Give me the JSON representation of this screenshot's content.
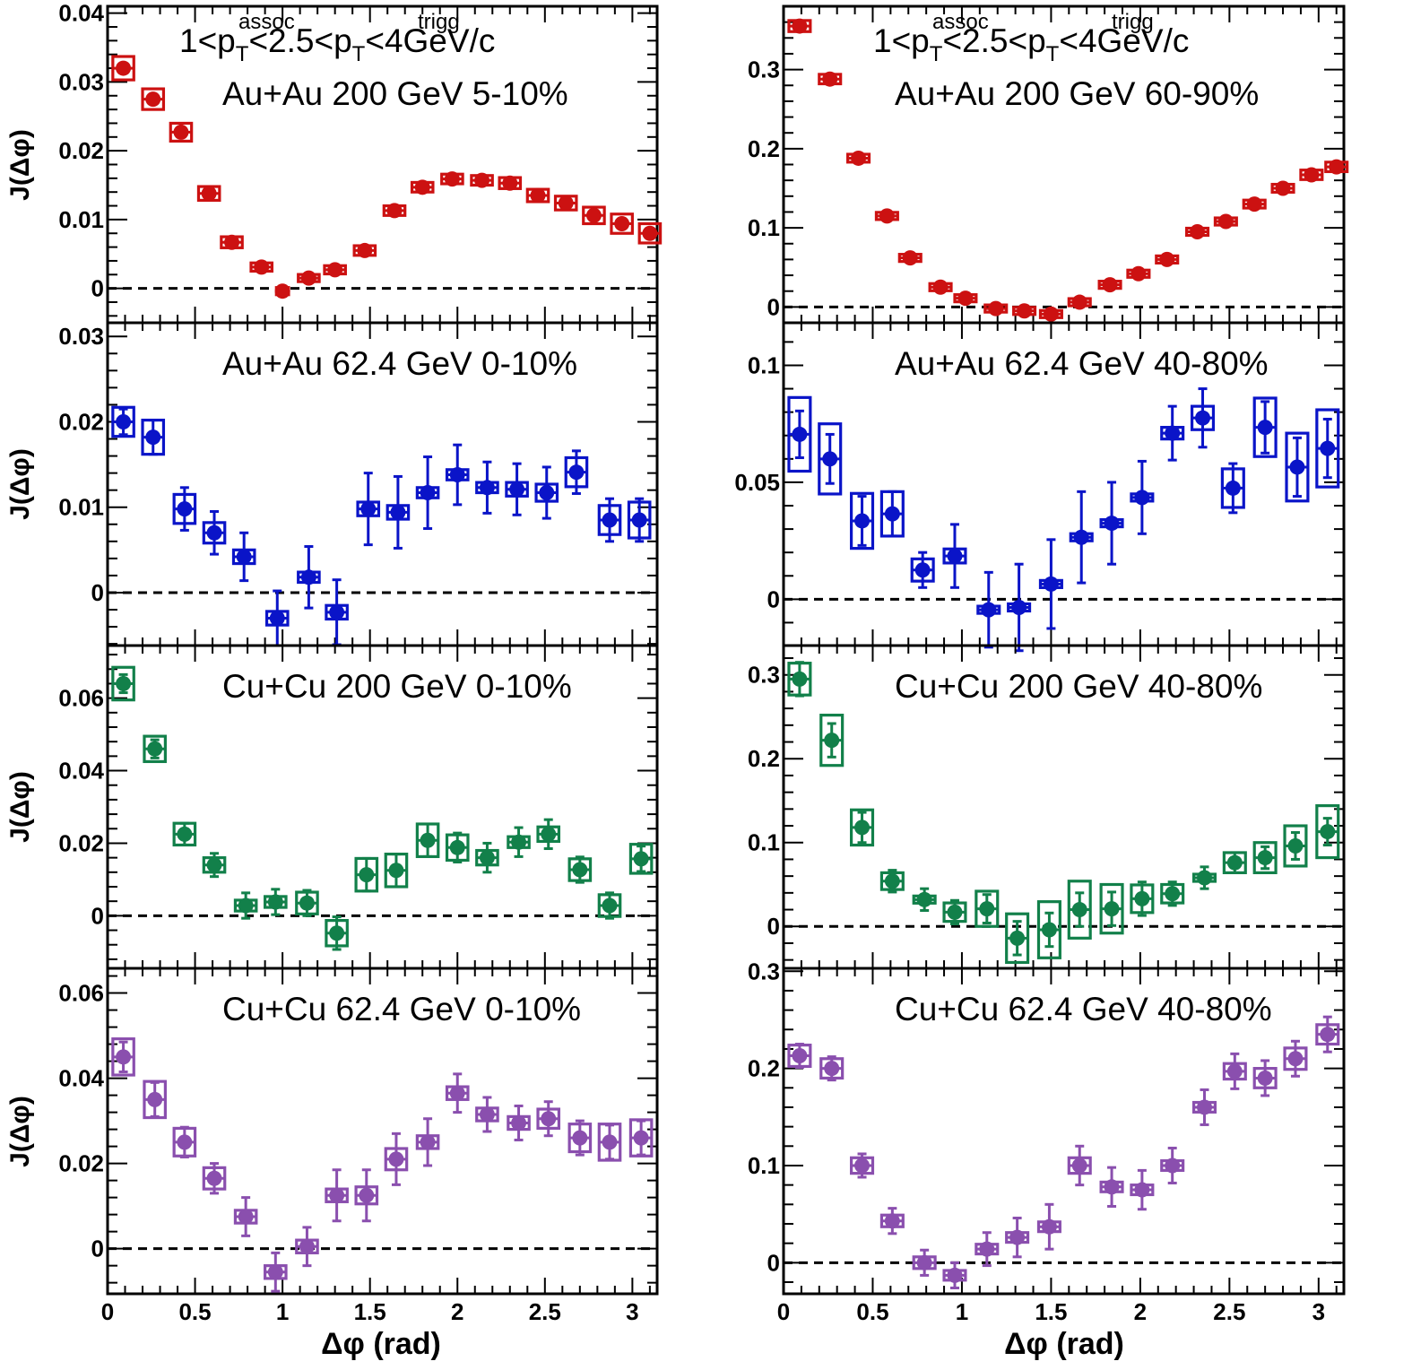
{
  "colors": {
    "au200": "#cc1111",
    "au62": "#0a14c8",
    "cu200": "#12804a",
    "cu62": "#8a4fae",
    "axis": "#000000"
  },
  "header": {
    "p1": "1<p",
    "sup1": "assoc",
    "sub1": "T",
    "p2": "<2.5<p",
    "sup2": "trigg",
    "sub2": "T",
    "p3": "<4GeV/c"
  },
  "ylabel": "J(Δφ)",
  "xlabel": "Δφ  (rad)",
  "chart_data": [
    {
      "type": "scatter",
      "label": "Au+Au 200 GeV 5-10%",
      "color_key": "au200",
      "x": [
        0.09,
        0.26,
        0.42,
        0.58,
        0.71,
        0.88,
        1.0,
        1.15,
        1.3,
        1.47,
        1.64,
        1.8,
        1.97,
        2.14,
        2.3,
        2.46,
        2.62,
        2.78,
        2.94,
        3.1
      ],
      "values": [
        0.032,
        0.0275,
        0.0227,
        0.0138,
        0.0067,
        0.0031,
        -0.0004,
        0.0015,
        0.0027,
        0.0055,
        0.0113,
        0.0147,
        0.0159,
        0.0157,
        0.0153,
        0.0135,
        0.0124,
        0.0106,
        0.0094,
        0.008
      ],
      "yerr": [
        0,
        0,
        0,
        0,
        0,
        0,
        0,
        0,
        0,
        0,
        0,
        0,
        0,
        0,
        0,
        0,
        0,
        0,
        0,
        0
      ],
      "box_h": [
        0.0034,
        0.003,
        0.0026,
        0.002,
        0.0016,
        0.0012,
        0.001,
        0.001,
        0.0012,
        0.0014,
        0.0014,
        0.0014,
        0.0014,
        0.0014,
        0.0016,
        0.0018,
        0.002,
        0.0024,
        0.0028,
        0.0028
      ],
      "box_w": [
        0.12,
        0.12,
        0.12,
        0.12,
        0.12,
        0.12,
        0.07,
        0.12,
        0.12,
        0.12,
        0.12,
        0.12,
        0.12,
        0.12,
        0.12,
        0.12,
        0.12,
        0.12,
        0.12,
        0.12
      ],
      "ylim": [
        -0.005,
        0.041
      ],
      "yticks": [
        0,
        0.01,
        0.02,
        0.03,
        0.04
      ],
      "ytick_labels": [
        "0",
        "0.01",
        "0.02",
        "0.03",
        "0.04"
      ]
    },
    {
      "type": "scatter",
      "label": "Au+Au 200 GeV 60-90%",
      "color_key": "au200",
      "x": [
        0.09,
        0.26,
        0.42,
        0.58,
        0.71,
        0.88,
        1.02,
        1.19,
        1.35,
        1.5,
        1.66,
        1.83,
        1.99,
        2.15,
        2.32,
        2.48,
        2.64,
        2.8,
        2.96,
        3.1
      ],
      "values": [
        0.355,
        0.288,
        0.188,
        0.115,
        0.062,
        0.025,
        0.011,
        -0.002,
        -0.005,
        -0.009,
        0.006,
        0.028,
        0.042,
        0.06,
        0.095,
        0.108,
        0.13,
        0.15,
        0.167,
        0.177
      ],
      "yerr": [
        0,
        0,
        0,
        0,
        0,
        0,
        0,
        0,
        0,
        0,
        0,
        0,
        0,
        0,
        0,
        0,
        0,
        0,
        0,
        0
      ],
      "box_h": [
        0.014,
        0.012,
        0.01,
        0.008,
        0.008,
        0.006,
        0.006,
        0.006,
        0.006,
        0.006,
        0.006,
        0.006,
        0.006,
        0.006,
        0.008,
        0.008,
        0.01,
        0.01,
        0.012,
        0.012
      ],
      "box_w": [
        0.12,
        0.12,
        0.12,
        0.12,
        0.12,
        0.12,
        0.12,
        0.12,
        0.12,
        0.12,
        0.12,
        0.12,
        0.12,
        0.12,
        0.12,
        0.12,
        0.12,
        0.12,
        0.12,
        0.12
      ],
      "ylim": [
        -0.02,
        0.38
      ],
      "yticks": [
        0,
        0.1,
        0.2,
        0.3
      ],
      "ytick_labels": [
        "0",
        "0.1",
        "0.2",
        "0.3"
      ]
    },
    {
      "type": "scatter",
      "label": "Au+Au 62.4 GeV 0-10%",
      "color_key": "au62",
      "x": [
        0.09,
        0.26,
        0.44,
        0.61,
        0.78,
        0.97,
        1.15,
        1.31,
        1.49,
        1.66,
        1.83,
        2.0,
        2.17,
        2.34,
        2.51,
        2.68,
        2.87,
        3.04
      ],
      "values": [
        0.02,
        0.0182,
        0.0098,
        0.007,
        0.0042,
        -0.003,
        0.0018,
        -0.0023,
        0.0098,
        0.0094,
        0.0117,
        0.0138,
        0.0123,
        0.0121,
        0.0117,
        0.0141,
        0.0085,
        0.0085
      ],
      "yerr": [
        0.0015,
        0.002,
        0.0025,
        0.0025,
        0.0028,
        0.0032,
        0.0036,
        0.0038,
        0.0042,
        0.0042,
        0.0042,
        0.0035,
        0.003,
        0.003,
        0.003,
        0.0025,
        0.0025,
        0.0025
      ],
      "box_h": [
        0.0034,
        0.004,
        0.0034,
        0.0024,
        0.0016,
        0.0016,
        0.0012,
        0.0016,
        0.0016,
        0.0016,
        0.0012,
        0.0012,
        0.0012,
        0.0016,
        0.002,
        0.0034,
        0.0034,
        0.0042
      ],
      "box_w": [
        0.12,
        0.12,
        0.12,
        0.12,
        0.12,
        0.12,
        0.12,
        0.12,
        0.12,
        0.12,
        0.12,
        0.12,
        0.12,
        0.12,
        0.12,
        0.12,
        0.12,
        0.12
      ],
      "ylim": [
        -0.0062,
        0.0316
      ],
      "yticks": [
        0,
        0.01,
        0.02,
        0.03
      ],
      "ytick_labels": [
        "0",
        "0.01",
        "0.02",
        "0.03"
      ]
    },
    {
      "type": "scatter",
      "label": "Au+Au 62.4 GeV 40-80%",
      "color_key": "au62",
      "x": [
        0.09,
        0.26,
        0.44,
        0.61,
        0.78,
        0.96,
        1.15,
        1.32,
        1.5,
        1.67,
        1.84,
        2.01,
        2.18,
        2.35,
        2.52,
        2.7,
        2.88,
        3.05
      ],
      "values": [
        0.0705,
        0.06,
        0.0335,
        0.0365,
        0.0125,
        0.0185,
        -0.0045,
        -0.0035,
        0.0065,
        0.0265,
        0.0325,
        0.0435,
        0.071,
        0.0775,
        0.0475,
        0.0735,
        0.0565,
        0.0645
      ],
      "yerr": [
        0.01,
        0.0105,
        0.0105,
        0.0095,
        0.0075,
        0.0135,
        0.016,
        0.0185,
        0.019,
        0.0195,
        0.0175,
        0.0155,
        0.0115,
        0.0125,
        0.0105,
        0.011,
        0.0125,
        0.0125
      ],
      "box_h": [
        0.0315,
        0.03,
        0.0235,
        0.019,
        0.0095,
        0.006,
        0.003,
        0.003,
        0.003,
        0.003,
        0.003,
        0.003,
        0.005,
        0.01,
        0.0165,
        0.025,
        0.029,
        0.033
      ],
      "box_w": [
        0.12,
        0.12,
        0.12,
        0.12,
        0.12,
        0.12,
        0.12,
        0.12,
        0.12,
        0.12,
        0.12,
        0.12,
        0.12,
        0.12,
        0.12,
        0.12,
        0.12,
        0.12
      ],
      "ylim": [
        -0.0198,
        0.1182
      ],
      "yticks": [
        0,
        0.05,
        0.1
      ],
      "ytick_labels": [
        "0",
        "0.05",
        "0.1"
      ]
    },
    {
      "type": "scatter",
      "label": "Cu+Cu 200 GeV 0-10%",
      "color_key": "cu200",
      "x": [
        0.09,
        0.27,
        0.44,
        0.61,
        0.79,
        0.96,
        1.14,
        1.31,
        1.48,
        1.65,
        1.83,
        2.0,
        2.17,
        2.35,
        2.52,
        2.7,
        2.87,
        3.05
      ],
      "values": [
        0.064,
        0.046,
        0.0225,
        0.014,
        0.0028,
        0.0038,
        0.0035,
        -0.0048,
        0.0113,
        0.0125,
        0.0208,
        0.0188,
        0.016,
        0.0203,
        0.0225,
        0.0127,
        0.0028,
        0.0157
      ],
      "yerr": [
        0.0025,
        0.0025,
        0.003,
        0.0032,
        0.0035,
        0.0035,
        0.0035,
        0.0045,
        0.0045,
        0.0045,
        0.0045,
        0.004,
        0.004,
        0.004,
        0.004,
        0.0035,
        0.0035,
        0.0035
      ],
      "box_h": [
        0.009,
        0.007,
        0.006,
        0.004,
        0.003,
        0.003,
        0.006,
        0.007,
        0.009,
        0.009,
        0.009,
        0.007,
        0.004,
        0.003,
        0.004,
        0.006,
        0.006,
        0.008
      ],
      "box_w": [
        0.12,
        0.12,
        0.12,
        0.12,
        0.12,
        0.12,
        0.12,
        0.12,
        0.12,
        0.12,
        0.12,
        0.12,
        0.12,
        0.12,
        0.12,
        0.12,
        0.12,
        0.12
      ],
      "ylim": [
        -0.0145,
        0.0745
      ],
      "yticks": [
        0,
        0.02,
        0.04,
        0.06
      ],
      "ytick_labels": [
        "0",
        "0.02",
        "0.04",
        "0.06"
      ]
    },
    {
      "type": "scatter",
      "label": "Cu+Cu 200 GeV 40-80%",
      "color_key": "cu200",
      "x": [
        0.09,
        0.27,
        0.44,
        0.61,
        0.79,
        0.96,
        1.14,
        1.31,
        1.49,
        1.66,
        1.84,
        2.01,
        2.18,
        2.36,
        2.53,
        2.7,
        2.87,
        3.05
      ],
      "values": [
        0.295,
        0.222,
        0.118,
        0.054,
        0.032,
        0.017,
        0.021,
        -0.014,
        -0.004,
        0.02,
        0.021,
        0.033,
        0.039,
        0.058,
        0.076,
        0.082,
        0.096,
        0.113
      ],
      "yerr": [
        0.02,
        0.02,
        0.018,
        0.013,
        0.013,
        0.014,
        0.017,
        0.02,
        0.02,
        0.02,
        0.02,
        0.02,
        0.014,
        0.013,
        0.012,
        0.013,
        0.016,
        0.016
      ],
      "box_h": [
        0.038,
        0.06,
        0.042,
        0.02,
        0.008,
        0.022,
        0.042,
        0.058,
        0.067,
        0.068,
        0.058,
        0.033,
        0.022,
        0.008,
        0.024,
        0.036,
        0.048,
        0.062
      ],
      "box_w": [
        0.12,
        0.12,
        0.12,
        0.12,
        0.12,
        0.12,
        0.12,
        0.12,
        0.12,
        0.12,
        0.12,
        0.12,
        0.12,
        0.12,
        0.12,
        0.12,
        0.12,
        0.12
      ],
      "ylim": [
        -0.05,
        0.335
      ],
      "yticks": [
        0,
        0.1,
        0.2,
        0.3
      ],
      "ytick_labels": [
        "0",
        "0.1",
        "0.2",
        "0.3"
      ]
    },
    {
      "type": "scatter",
      "label": "Cu+Cu 62.4 GeV 0-10%",
      "color_key": "cu62",
      "x": [
        0.09,
        0.27,
        0.44,
        0.61,
        0.79,
        0.96,
        1.14,
        1.31,
        1.48,
        1.65,
        1.83,
        2.0,
        2.17,
        2.35,
        2.52,
        2.7,
        2.87,
        3.05
      ],
      "values": [
        0.045,
        0.035,
        0.025,
        0.0165,
        0.0075,
        -0.0055,
        0.0005,
        0.0125,
        0.0125,
        0.021,
        0.025,
        0.0365,
        0.0315,
        0.0295,
        0.0305,
        0.026,
        0.025,
        0.026
      ],
      "yerr": [
        0.0035,
        0.004,
        0.0035,
        0.0035,
        0.0045,
        0.0045,
        0.0045,
        0.006,
        0.006,
        0.006,
        0.0055,
        0.0045,
        0.004,
        0.004,
        0.004,
        0.004,
        0.004,
        0.004
      ],
      "box_h": [
        0.0085,
        0.0085,
        0.0065,
        0.005,
        0.003,
        0.003,
        0.003,
        0.003,
        0.004,
        0.005,
        0.003,
        0.003,
        0.003,
        0.003,
        0.0045,
        0.0065,
        0.0085,
        0.0085
      ],
      "box_w": [
        0.12,
        0.12,
        0.12,
        0.12,
        0.12,
        0.12,
        0.12,
        0.12,
        0.12,
        0.12,
        0.12,
        0.12,
        0.12,
        0.12,
        0.12,
        0.12,
        0.12,
        0.12
      ],
      "ylim": [
        -0.0106,
        0.0658
      ],
      "yticks": [
        0,
        0.02,
        0.04,
        0.06
      ],
      "ytick_labels": [
        "0",
        "0.02",
        "0.04",
        "0.06"
      ]
    },
    {
      "type": "scatter",
      "label": "Cu+Cu 62.4 GeV 40-80%",
      "color_key": "cu62",
      "x": [
        0.09,
        0.27,
        0.44,
        0.61,
        0.79,
        0.96,
        1.14,
        1.31,
        1.49,
        1.66,
        1.84,
        2.01,
        2.18,
        2.36,
        2.53,
        2.7,
        2.87,
        3.05
      ],
      "values": [
        0.213,
        0.2,
        0.1,
        0.043,
        0,
        -0.013,
        0.014,
        0.026,
        0.037,
        0.1,
        0.078,
        0.075,
        0.1,
        0.16,
        0.197,
        0.19,
        0.21,
        0.235
      ],
      "yerr": [
        0.012,
        0.012,
        0.012,
        0.013,
        0.013,
        0.013,
        0.017,
        0.02,
        0.023,
        0.02,
        0.02,
        0.02,
        0.018,
        0.018,
        0.018,
        0.018,
        0.018,
        0.018
      ],
      "box_h": [
        0.022,
        0.02,
        0.016,
        0.012,
        0.012,
        0.01,
        0.01,
        0.01,
        0.01,
        0.016,
        0.01,
        0.01,
        0.01,
        0.01,
        0.016,
        0.02,
        0.022,
        0.02
      ],
      "box_w": [
        0.12,
        0.12,
        0.12,
        0.12,
        0.12,
        0.12,
        0.12,
        0.12,
        0.12,
        0.12,
        0.12,
        0.12,
        0.12,
        0.12,
        0.12,
        0.12,
        0.12,
        0.12
      ],
      "ylim": [
        -0.032,
        0.303
      ],
      "yticks": [
        0,
        0.1,
        0.2,
        0.3
      ],
      "ytick_labels": [
        "0",
        "0.1",
        "0.2",
        "0.3"
      ]
    }
  ],
  "x_axis": {
    "xlim": [
      0,
      3.14159
    ],
    "ticks": [
      0,
      0.5,
      1,
      1.5,
      2,
      2.5,
      3
    ],
    "tick_labels": [
      "0",
      "0.5",
      "1",
      "1.5",
      "2",
      "2.5",
      "3"
    ]
  }
}
